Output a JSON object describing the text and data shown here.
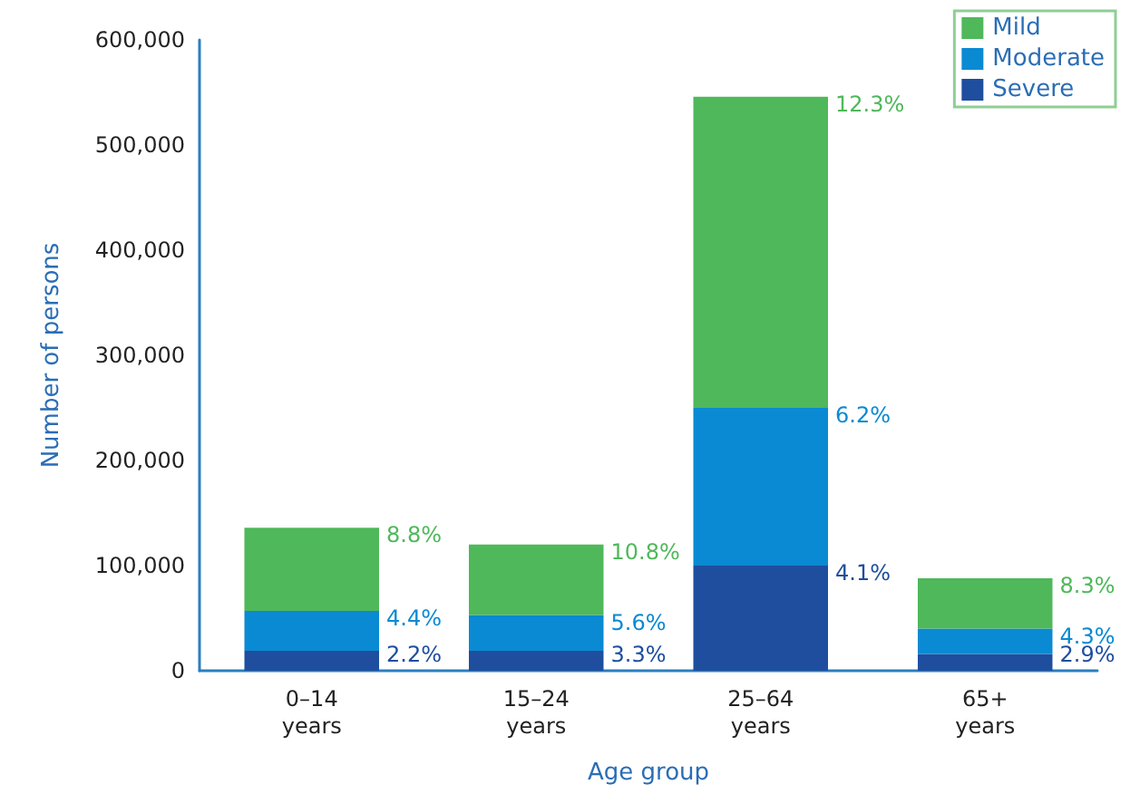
{
  "chart_data": {
    "type": "bar",
    "stacked": true,
    "xlabel": "Age group",
    "ylabel": "Number of persons",
    "categories": [
      "0–14\nyears",
      "15–24\nyears",
      "25–64\nyears",
      "65+\nyears"
    ],
    "series": [
      {
        "name": "Severe",
        "color": "#1f4e9f",
        "values": [
          19000,
          19000,
          100000,
          16000
        ]
      },
      {
        "name": "Moderate",
        "color": "#0a8ad2",
        "values": [
          38000,
          34000,
          150000,
          24000
        ]
      },
      {
        "name": "Mild",
        "color": "#4fb85a",
        "values": [
          79000,
          67000,
          296000,
          48000
        ]
      }
    ],
    "annotations": [
      "2.2%",
      "4.4%",
      "8.8%",
      "3.3%",
      "5.6%",
      "10.8%",
      "4.1%",
      "6.2%",
      "12.3%",
      "2.9%",
      "4.3%",
      "8.3%"
    ],
    "ylim": [
      0,
      600000
    ],
    "yticks": [
      0,
      {
        "value": 100000,
        "label": "100,000"
      },
      {
        "value": 200000,
        "label": "200,000"
      },
      {
        "value": 300000,
        "label": "300,000"
      },
      {
        "value": 400000,
        "label": "400,000"
      },
      {
        "value": 500000,
        "label": "500,000"
      },
      {
        "value": 600000,
        "label": "600,000"
      }
    ],
    "grid": false,
    "legend": "top right"
  }
}
